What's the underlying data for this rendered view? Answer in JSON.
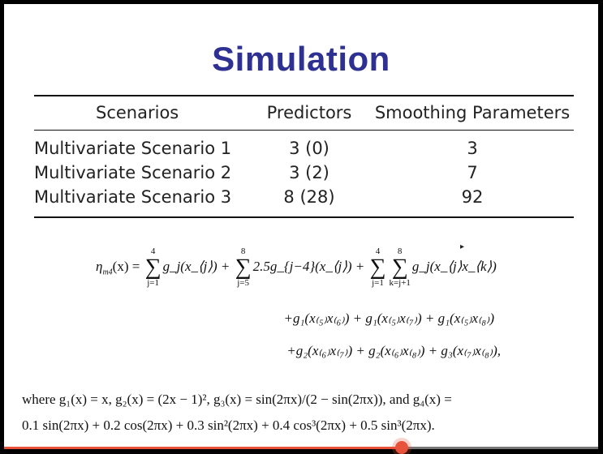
{
  "slide": {
    "title": "Simulation",
    "table": {
      "headers": [
        "Scenarios",
        "Predictors",
        "Smoothing Parameters"
      ],
      "rows": [
        [
          "Multivariate Scenario 1",
          "3 (0)",
          "3"
        ],
        [
          "Multivariate Scenario 2",
          "3 (2)",
          "7"
        ],
        [
          "Multivariate Scenario 3",
          "8 (28)",
          "92"
        ]
      ]
    },
    "equation": {
      "lhs": "η",
      "lhs_sub": "m4",
      "lhs_arg": "(x) =",
      "sum1": {
        "upper": "4",
        "lower": "j=1",
        "term": "g_j(x_⟨j⟩) +"
      },
      "sum2": {
        "upper": "8",
        "lower": "j=5",
        "term": "2.5g_{j−4}(x_⟨j⟩) +"
      },
      "sum3": {
        "upper": "4",
        "lower": "j=1"
      },
      "sum4": {
        "upper": "8",
        "lower": "k=j+1",
        "term": "g_j(x_⟨j⟩x_⟨k⟩)"
      },
      "line2": "+g₁(x₍₅₎x₍₆₎) + g₁(x₍₅₎x₍₇₎) + g₁(x₍₅₎x₍₈₎)",
      "line3": "+g₂(x₍₆₎x₍₇₎) + g₂(x₍₆₎x₍₈₎) + g₃(x₍₇₎x₍₈₎),"
    },
    "where_line1": "where g₁(x) = x,  g₂(x) = (2x − 1)²,  g₃(x) = sin(2πx)/(2 − sin(2πx)),  and  g₄(x) =",
    "where_line2": "0.1 sin(2πx) + 0.2 cos(2πx) + 0.3 sin²(2πx) + 0.4 cos³(2πx) + 0.5 sin³(2πx)."
  },
  "player": {
    "progress_fraction": 0.67,
    "progress_color": "#e8523a",
    "title_color": "#2e3192"
  }
}
